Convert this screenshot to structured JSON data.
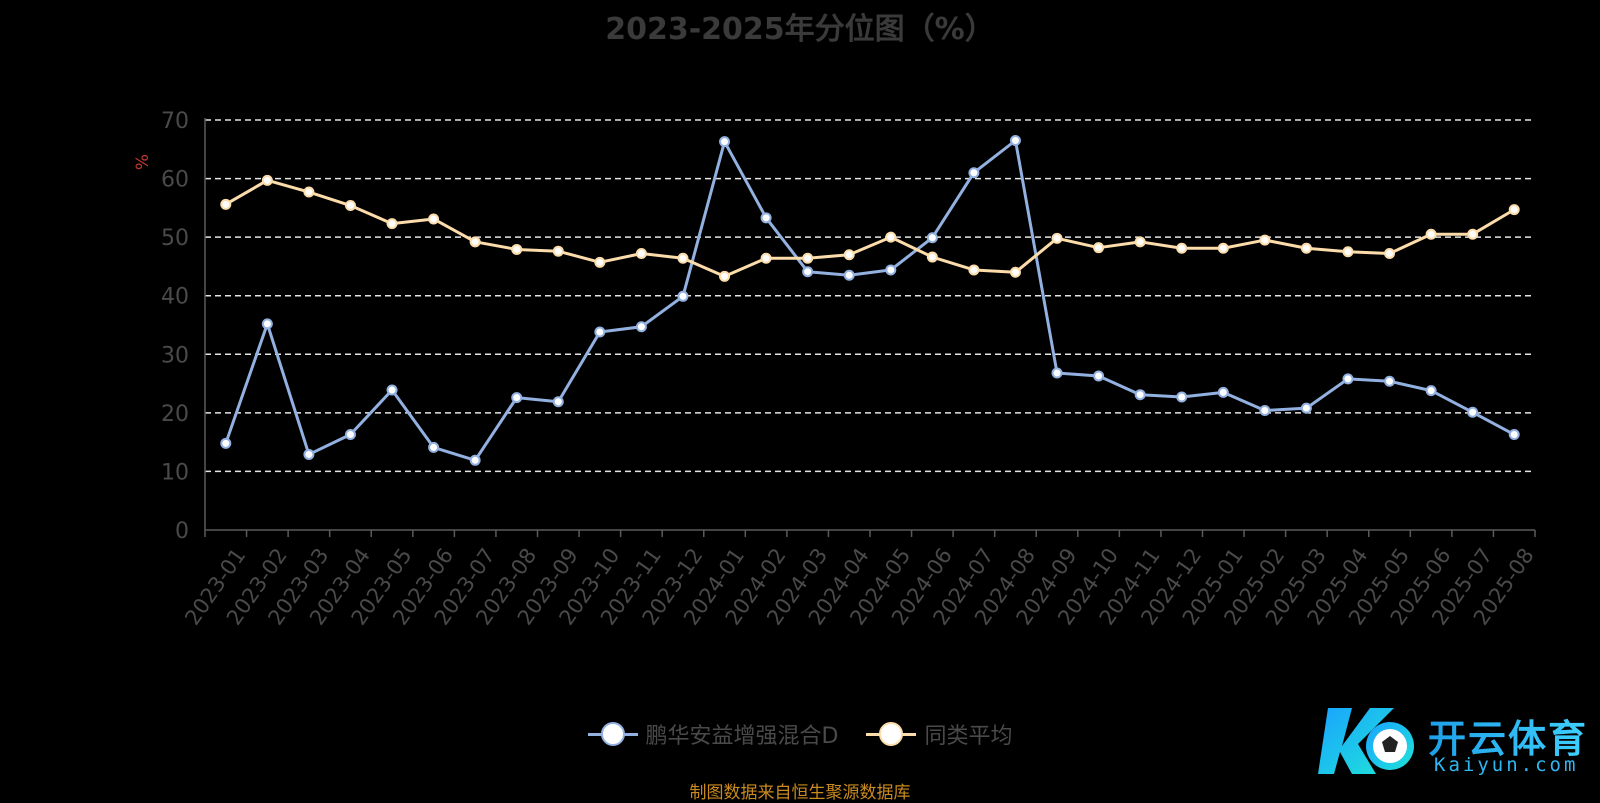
{
  "chart_data": {
    "type": "line",
    "title": "2023-2025年分位图（%）",
    "ylabel": "%",
    "xlabel": "",
    "ylim": [
      0,
      70
    ],
    "yticks": [
      0,
      10,
      20,
      30,
      40,
      50,
      60,
      70
    ],
    "grid": true,
    "legend_position": "bottom",
    "categories": [
      "2023-01",
      "2023-02",
      "2023-03",
      "2023-04",
      "2023-05",
      "2023-06",
      "2023-07",
      "2023-08",
      "2023-09",
      "2023-10",
      "2023-11",
      "2023-12",
      "2024-01",
      "2024-02",
      "2024-03",
      "2024-04",
      "2024-05",
      "2024-06",
      "2024-07",
      "2024-08",
      "2024-09",
      "2024-10",
      "2024-11",
      "2024-12",
      "2025-01",
      "2025-02",
      "2025-03",
      "2025-04",
      "2025-05",
      "2025-06",
      "2025-07",
      "2025-08"
    ],
    "series": [
      {
        "name": "鹏华安益增强混合D",
        "color": "#92b1e0",
        "values": [
          14.8,
          35.2,
          12.9,
          16.3,
          23.9,
          14.1,
          11.9,
          22.6,
          21.9,
          33.8,
          34.7,
          39.9,
          66.3,
          53.3,
          44.1,
          43.5,
          44.4,
          49.9,
          61.0,
          66.5,
          26.8,
          26.3,
          23.1,
          22.7,
          23.5,
          20.4,
          20.8,
          25.8,
          25.4,
          23.8,
          20.1,
          16.3
        ]
      },
      {
        "name": "同类平均",
        "color": "#fcdcaa",
        "values": [
          55.6,
          59.7,
          57.7,
          55.4,
          52.3,
          53.1,
          49.2,
          47.9,
          47.6,
          45.7,
          47.2,
          46.4,
          43.3,
          46.4,
          46.4,
          47.0,
          50.0,
          46.6,
          44.4,
          44.0,
          49.8,
          48.2,
          49.2,
          48.1,
          48.1,
          49.5,
          48.1,
          47.5,
          47.2,
          50.5,
          50.5,
          54.7
        ]
      }
    ]
  },
  "footer": {
    "source": "制图数据来自恒生聚源数据库"
  },
  "logo": {
    "cn": "开云体育",
    "en": "Kaiyun.com"
  }
}
